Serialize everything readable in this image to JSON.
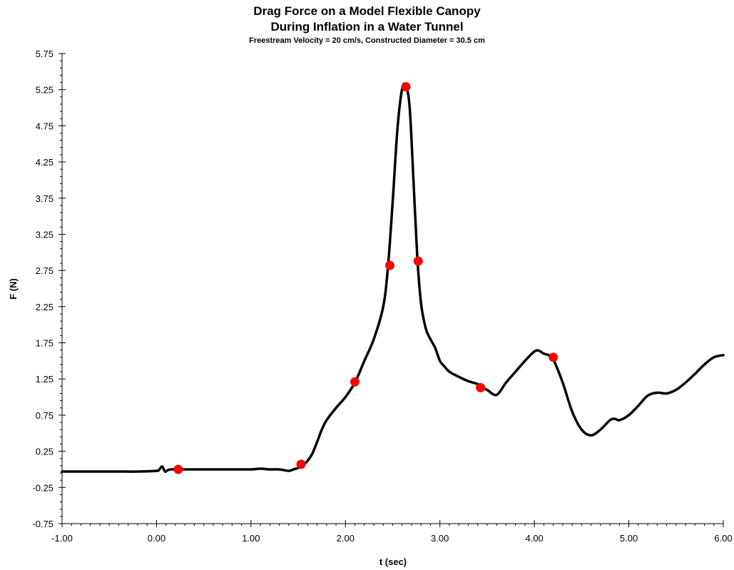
{
  "chart_data": {
    "type": "line",
    "title_line1": "Drag Force on a Model Flexible Canopy",
    "title_line2": "During Inflation in a Water Tunnel",
    "subtitle": "Freestream Velocity = 20 cm/s, Constructed Diameter = 30.5 cm",
    "xlabel": "t (sec)",
    "ylabel": "F (N)",
    "xlim": [
      -1.0,
      6.0
    ],
    "ylim": [
      -0.75,
      5.75
    ],
    "xticks": [
      "-1.00",
      "0.00",
      "1.00",
      "2.00",
      "3.00",
      "4.00",
      "5.00",
      "6.00"
    ],
    "yticks": [
      "-0.75",
      "-0.25",
      "0.25",
      "0.75",
      "1.25",
      "1.75",
      "2.25",
      "2.75",
      "3.25",
      "3.75",
      "4.25",
      "4.75",
      "5.25",
      "5.75"
    ],
    "grid": false,
    "line_color": "#000000",
    "marker_color": "#ff0000",
    "series": [
      {
        "x": [
          -1.0,
          -0.8,
          -0.6,
          -0.4,
          -0.2,
          0.0,
          0.03,
          0.06,
          0.09,
          0.12,
          0.15,
          0.2,
          0.3,
          0.5,
          0.8,
          1.0,
          1.1,
          1.2,
          1.3,
          1.4,
          1.45,
          1.5,
          1.55,
          1.6,
          1.65,
          1.7,
          1.75,
          1.8,
          1.9,
          2.0,
          2.1,
          2.2,
          2.3,
          2.4,
          2.45,
          2.5,
          2.55,
          2.6,
          2.64,
          2.68,
          2.72,
          2.76,
          2.8,
          2.85,
          2.9,
          2.95,
          3.0,
          3.05,
          3.1,
          3.2,
          3.3,
          3.4,
          3.45,
          3.5,
          3.6,
          3.7,
          3.8,
          3.9,
          4.0,
          4.05,
          4.1,
          4.15,
          4.2,
          4.3,
          4.4,
          4.5,
          4.6,
          4.7,
          4.8,
          4.85,
          4.9,
          5.0,
          5.1,
          5.2,
          5.3,
          5.4,
          5.5,
          5.6,
          5.7,
          5.8,
          5.9,
          6.0
        ],
        "y": [
          -0.03,
          -0.03,
          -0.03,
          -0.03,
          -0.03,
          -0.02,
          0.0,
          0.04,
          -0.03,
          -0.01,
          0.0,
          0.0,
          0.0,
          0.0,
          0.0,
          0.0,
          0.01,
          0.0,
          0.0,
          -0.02,
          0.0,
          0.02,
          0.06,
          0.12,
          0.22,
          0.38,
          0.55,
          0.68,
          0.85,
          1.0,
          1.2,
          1.5,
          1.8,
          2.25,
          2.8,
          3.7,
          4.7,
          5.26,
          5.3,
          5.0,
          4.0,
          2.95,
          2.3,
          1.95,
          1.8,
          1.68,
          1.5,
          1.42,
          1.35,
          1.28,
          1.22,
          1.18,
          1.13,
          1.1,
          1.03,
          1.2,
          1.35,
          1.5,
          1.63,
          1.64,
          1.6,
          1.58,
          1.52,
          1.2,
          0.8,
          0.55,
          0.47,
          0.55,
          0.68,
          0.7,
          0.68,
          0.75,
          0.88,
          1.02,
          1.06,
          1.05,
          1.1,
          1.2,
          1.32,
          1.45,
          1.55,
          1.58
        ]
      }
    ],
    "markers": [
      {
        "x": 0.23,
        "y": 0.0
      },
      {
        "x": 1.53,
        "y": 0.07
      },
      {
        "x": 2.1,
        "y": 1.21
      },
      {
        "x": 2.47,
        "y": 2.82
      },
      {
        "x": 2.64,
        "y": 5.29
      },
      {
        "x": 2.77,
        "y": 2.88
      },
      {
        "x": 3.43,
        "y": 1.13
      },
      {
        "x": 4.2,
        "y": 1.55
      }
    ]
  }
}
